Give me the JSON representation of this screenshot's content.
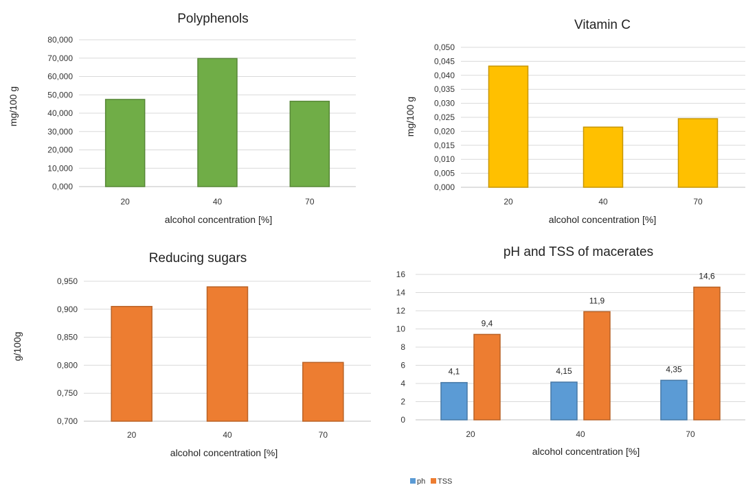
{
  "chart_data": [
    {
      "type": "bar",
      "title": "Polyphenols",
      "xlabel": "alcohol concentration [%]",
      "ylabel": "mg/100 g",
      "categories": [
        "20",
        "40",
        "70"
      ],
      "series": [
        {
          "values": [
            47.5,
            69.8,
            46.5
          ]
        }
      ],
      "ylim": [
        0,
        80
      ],
      "yticks": [
        "0,000",
        "10,000",
        "20,000",
        "30,000",
        "40,000",
        "50,000",
        "60,000",
        "70,000",
        "80,000"
      ],
      "colors": [
        "#70ad47"
      ],
      "grid": true
    },
    {
      "type": "bar",
      "title": "Vitamin C",
      "xlabel": "alcohol concentration [%]",
      "ylabel": "mg/100 g",
      "categories": [
        "20",
        "40",
        "70"
      ],
      "series": [
        {
          "values": [
            0.0433,
            0.0215,
            0.0245
          ]
        }
      ],
      "ylim": [
        0,
        0.05
      ],
      "yticks": [
        "0,000",
        "0,005",
        "0,010",
        "0,015",
        "0,020",
        "0,025",
        "0,030",
        "0,035",
        "0,040",
        "0,045",
        "0,050"
      ],
      "colors": [
        "#ffc000"
      ],
      "grid": true
    },
    {
      "type": "bar",
      "title": "Reducing sugars",
      "xlabel": "alcohol concentration [%]",
      "ylabel": "g/100g",
      "categories": [
        "20",
        "40",
        "70"
      ],
      "series": [
        {
          "values": [
            0.905,
            0.94,
            0.805
          ]
        }
      ],
      "ylim": [
        0.7,
        0.95
      ],
      "yticks": [
        "0,700",
        "0,750",
        "0,800",
        "0,850",
        "0,900",
        "0,950"
      ],
      "colors": [
        "#ed7d31"
      ],
      "grid": true
    },
    {
      "type": "bar",
      "title": "pH and TSS of macerates",
      "xlabel": "alcohol concentration [%]",
      "ylabel": "",
      "categories": [
        "20",
        "40",
        "70"
      ],
      "series": [
        {
          "name": "ph",
          "values": [
            4.1,
            4.15,
            4.35
          ],
          "labels": [
            "4,1",
            "4,15",
            "4,35"
          ]
        },
        {
          "name": "TSS",
          "values": [
            9.4,
            11.9,
            14.6
          ],
          "labels": [
            "9,4",
            "11,9",
            "14,6"
          ]
        }
      ],
      "ylim": [
        0,
        16
      ],
      "yticks": [
        "0",
        "2",
        "4",
        "6",
        "8",
        "10",
        "12",
        "14",
        "16"
      ],
      "colors": [
        "#5b9bd5",
        "#ed7d31"
      ],
      "legend": "bottom-left",
      "grid": true
    }
  ]
}
